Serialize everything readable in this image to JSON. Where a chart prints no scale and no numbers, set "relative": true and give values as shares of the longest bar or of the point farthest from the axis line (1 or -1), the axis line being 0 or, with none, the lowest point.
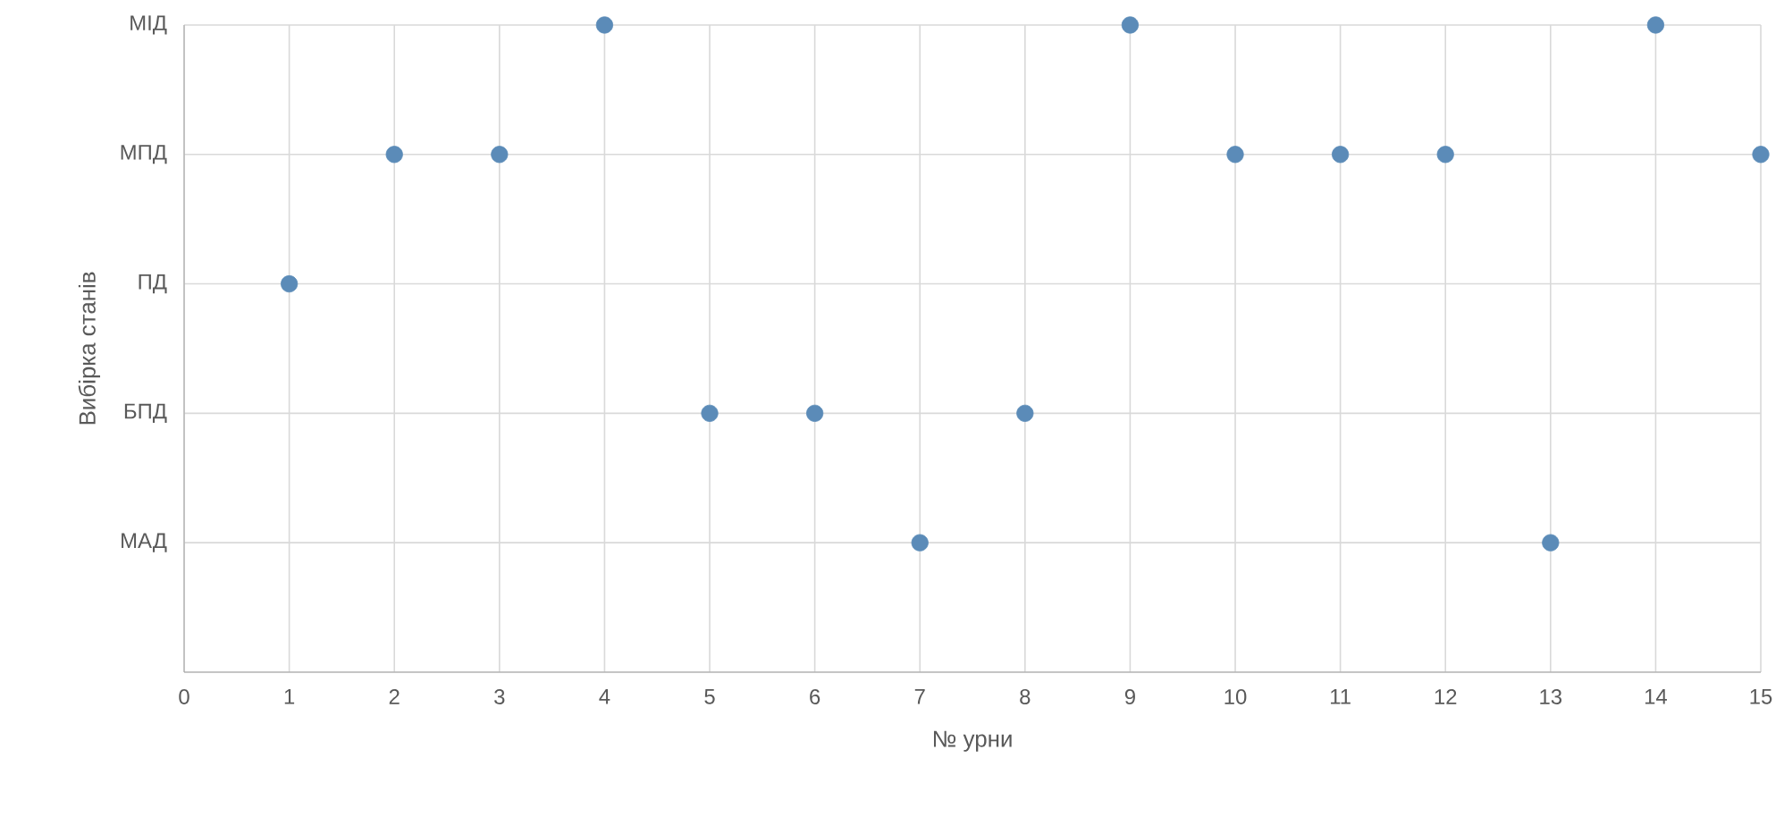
{
  "chart_data": {
    "type": "scatter",
    "xlabel": "№ урни",
    "ylabel": "Вибірка станів",
    "x": [
      1,
      2,
      3,
      4,
      5,
      6,
      7,
      8,
      9,
      10,
      11,
      12,
      13,
      14,
      15
    ],
    "relative": true,
    "series": [
      {
        "color": "#5b8bb8",
        "values": [
          0.6,
          0.8,
          0.8,
          1,
          0.4,
          0.4,
          0.2,
          0.4,
          1,
          0.8,
          0.8,
          0.8,
          0.2,
          1,
          0.8
        ]
      }
    ],
    "xlim": [
      0,
      15
    ],
    "xticks": [
      0,
      1,
      2,
      3,
      4,
      5,
      6,
      7,
      8,
      9,
      10,
      11,
      12,
      13,
      14,
      15
    ],
    "y_categories": [
      null,
      "МАД",
      "БПД",
      "ПД",
      "МПД",
      "МІД"
    ],
    "grid": true
  }
}
